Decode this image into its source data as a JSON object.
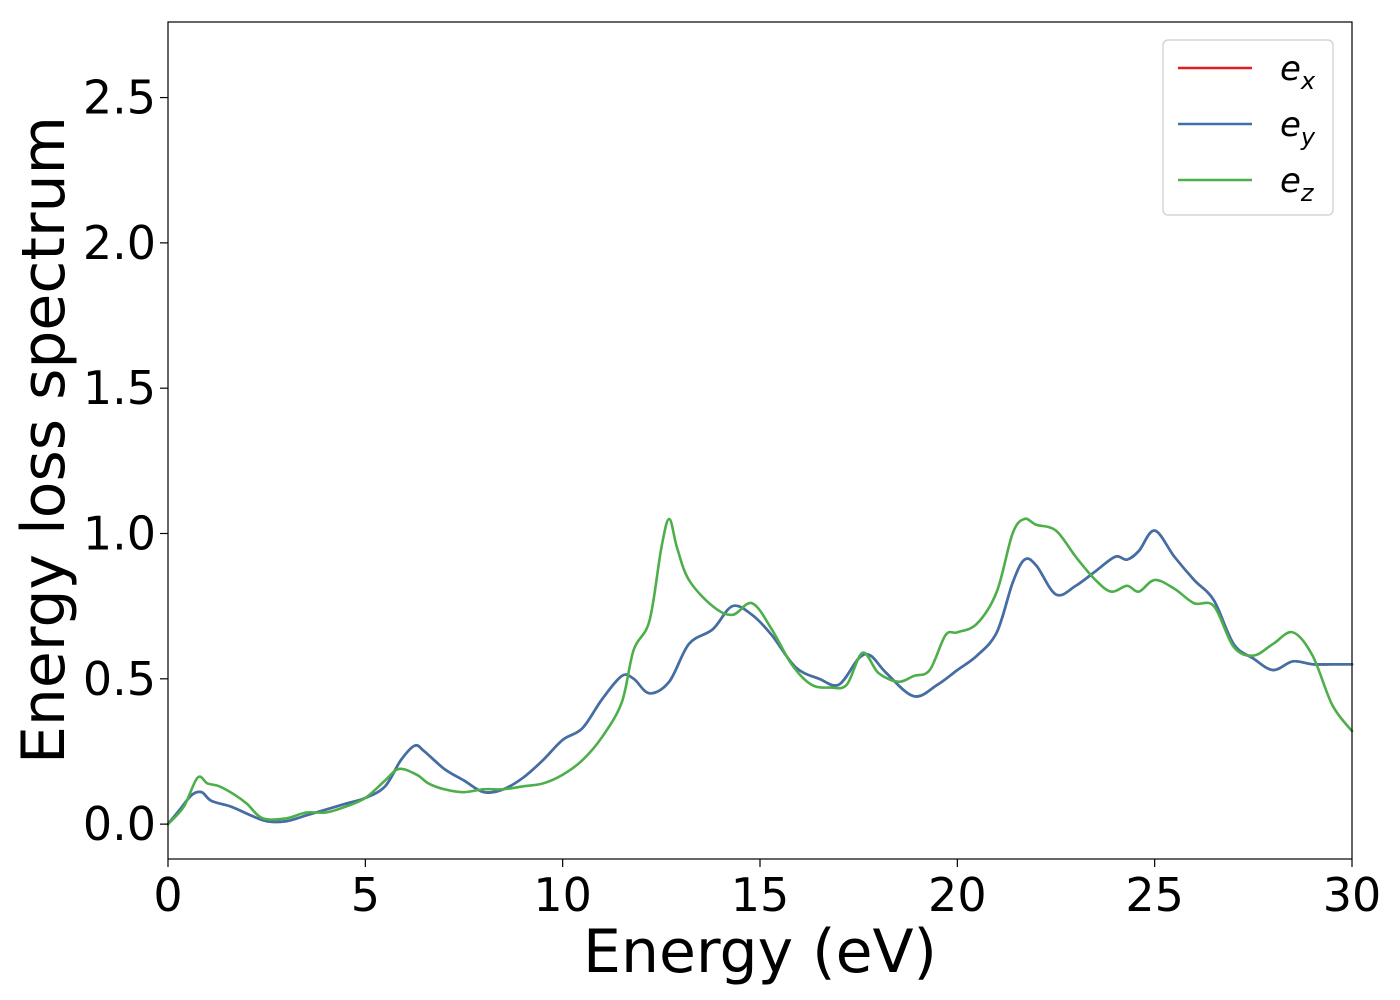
{
  "chart_data": {
    "type": "line",
    "title": "",
    "xlabel": "Energy (eV)",
    "ylabel": "Energy loss spectrum",
    "xlim": [
      0,
      30
    ],
    "ylim": [
      -0.12,
      2.76
    ],
    "xticks": [
      0,
      5,
      10,
      15,
      20,
      25,
      30
    ],
    "xtick_labels": [
      "0",
      "5",
      "10",
      "15",
      "20",
      "25",
      "30"
    ],
    "yticks": [
      0.0,
      0.5,
      1.0,
      1.5,
      2.0,
      2.5
    ],
    "ytick_labels": [
      "0.0",
      "0.5",
      "1.0",
      "1.5",
      "2.0",
      "2.5"
    ],
    "grid": false,
    "legend_position": "top-right",
    "series": [
      {
        "name": "e_x",
        "label_main": "e",
        "label_sub": "x",
        "color": "#e41a1c",
        "x": [
          0,
          0.3,
          0.6,
          0.85,
          1.1,
          1.6,
          2.1,
          2.5,
          3.0,
          3.5,
          4.0,
          4.5,
          5.0,
          5.5,
          5.9,
          6.25,
          6.5,
          7.0,
          7.5,
          8.0,
          8.5,
          9.0,
          9.5,
          10.0,
          10.5,
          11.0,
          11.5,
          11.8,
          12.2,
          12.7,
          13.2,
          13.8,
          14.3,
          14.8,
          15.3,
          15.9,
          16.5,
          17.0,
          17.5,
          17.8,
          18.2,
          18.9,
          19.5,
          20.0,
          20.5,
          21.0,
          21.4,
          21.7,
          22.0,
          22.5,
          23.0,
          23.5,
          24.0,
          24.3,
          24.6,
          25.0,
          25.5,
          26.0,
          26.5,
          27.0,
          27.5,
          28.0,
          28.5,
          29.0,
          29.5,
          30.0
        ],
        "y": [
          0.0,
          0.05,
          0.1,
          0.11,
          0.08,
          0.06,
          0.03,
          0.01,
          0.01,
          0.03,
          0.05,
          0.07,
          0.09,
          0.13,
          0.22,
          0.27,
          0.25,
          0.19,
          0.15,
          0.11,
          0.12,
          0.16,
          0.22,
          0.29,
          0.33,
          0.43,
          0.51,
          0.5,
          0.45,
          0.49,
          0.62,
          0.67,
          0.75,
          0.72,
          0.65,
          0.54,
          0.5,
          0.48,
          0.57,
          0.58,
          0.52,
          0.44,
          0.48,
          0.53,
          0.58,
          0.66,
          0.83,
          0.91,
          0.89,
          0.79,
          0.82,
          0.87,
          0.92,
          0.91,
          0.94,
          1.01,
          0.92,
          0.84,
          0.77,
          0.62,
          0.57,
          0.53,
          0.56,
          0.55,
          0.55,
          0.55
        ]
      },
      {
        "name": "e_y",
        "label_main": "e",
        "label_sub": "y",
        "color": "#3d71aa",
        "x": [
          0,
          0.3,
          0.6,
          0.85,
          1.1,
          1.6,
          2.1,
          2.5,
          3.0,
          3.5,
          4.0,
          4.5,
          5.0,
          5.5,
          5.9,
          6.25,
          6.5,
          7.0,
          7.5,
          8.0,
          8.5,
          9.0,
          9.5,
          10.0,
          10.5,
          11.0,
          11.5,
          11.8,
          12.2,
          12.7,
          13.2,
          13.8,
          14.3,
          14.8,
          15.3,
          15.9,
          16.5,
          17.0,
          17.5,
          17.8,
          18.2,
          18.9,
          19.5,
          20.0,
          20.5,
          21.0,
          21.4,
          21.7,
          22.0,
          22.5,
          23.0,
          23.5,
          24.0,
          24.3,
          24.6,
          25.0,
          25.5,
          26.0,
          26.5,
          27.0,
          27.5,
          28.0,
          28.5,
          29.0,
          29.5,
          30.0
        ],
        "y": [
          0.0,
          0.05,
          0.1,
          0.11,
          0.08,
          0.06,
          0.03,
          0.01,
          0.01,
          0.03,
          0.05,
          0.07,
          0.09,
          0.13,
          0.22,
          0.27,
          0.25,
          0.19,
          0.15,
          0.11,
          0.12,
          0.16,
          0.22,
          0.29,
          0.33,
          0.43,
          0.51,
          0.5,
          0.45,
          0.49,
          0.62,
          0.67,
          0.75,
          0.72,
          0.65,
          0.54,
          0.5,
          0.48,
          0.57,
          0.58,
          0.52,
          0.44,
          0.48,
          0.53,
          0.58,
          0.66,
          0.83,
          0.91,
          0.89,
          0.79,
          0.82,
          0.87,
          0.92,
          0.91,
          0.94,
          1.01,
          0.92,
          0.84,
          0.77,
          0.62,
          0.57,
          0.53,
          0.56,
          0.55,
          0.55,
          0.55
        ]
      },
      {
        "name": "e_z",
        "label_main": "e",
        "label_sub": "z",
        "color": "#4daf4a",
        "x": [
          0,
          0.4,
          0.75,
          1.0,
          1.3,
          1.7,
          2.0,
          2.4,
          3.0,
          3.5,
          4.0,
          4.5,
          5.0,
          5.5,
          5.85,
          6.3,
          6.6,
          7.0,
          7.5,
          8.0,
          8.5,
          9.0,
          9.5,
          10.0,
          10.5,
          11.0,
          11.5,
          11.8,
          12.2,
          12.5,
          12.7,
          12.9,
          13.2,
          13.8,
          14.3,
          14.8,
          15.3,
          15.8,
          16.3,
          16.8,
          17.2,
          17.6,
          18.0,
          18.5,
          18.9,
          19.3,
          19.7,
          20.0,
          20.5,
          21.0,
          21.4,
          21.7,
          22.0,
          22.5,
          23.0,
          23.5,
          23.9,
          24.3,
          24.6,
          25.0,
          25.5,
          26.0,
          26.5,
          27.0,
          27.5,
          28.0,
          28.5,
          29.0,
          29.5,
          30.0
        ],
        "y": [
          0.0,
          0.06,
          0.16,
          0.14,
          0.13,
          0.1,
          0.07,
          0.02,
          0.02,
          0.04,
          0.04,
          0.06,
          0.09,
          0.15,
          0.19,
          0.17,
          0.14,
          0.12,
          0.11,
          0.12,
          0.12,
          0.13,
          0.14,
          0.17,
          0.22,
          0.3,
          0.42,
          0.6,
          0.7,
          0.95,
          1.05,
          0.95,
          0.84,
          0.75,
          0.72,
          0.76,
          0.67,
          0.55,
          0.48,
          0.47,
          0.48,
          0.59,
          0.52,
          0.49,
          0.51,
          0.53,
          0.65,
          0.66,
          0.69,
          0.8,
          1.0,
          1.05,
          1.03,
          1.01,
          0.92,
          0.84,
          0.8,
          0.82,
          0.8,
          0.84,
          0.81,
          0.76,
          0.75,
          0.61,
          0.58,
          0.62,
          0.66,
          0.58,
          0.41,
          0.32
        ]
      }
    ]
  }
}
